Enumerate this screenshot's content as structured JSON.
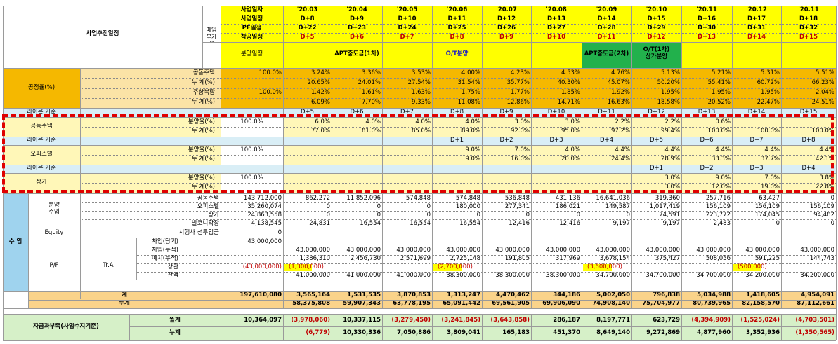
{
  "header": {
    "business_schedule": "사업추진일정",
    "purchase_vat": "매입\n부가세",
    "row_labels": [
      "사업일자",
      "사업일정",
      "PF일정",
      "착공일정"
    ],
    "sales_schedule": "분양일정",
    "columns": [
      {
        "date": "'20.03",
        "biz": "D+8",
        "pf": "D+22",
        "start": "D+5"
      },
      {
        "date": "'20.04",
        "biz": "D+9",
        "pf": "D+23",
        "start": "D+6"
      },
      {
        "date": "'20.05",
        "biz": "D+10",
        "pf": "D+24",
        "start": "D+7"
      },
      {
        "date": "'20.06",
        "biz": "D+11",
        "pf": "D+25",
        "start": "D+8"
      },
      {
        "date": "'20.07",
        "biz": "D+12",
        "pf": "D+26",
        "start": "D+9"
      },
      {
        "date": "'20.08",
        "biz": "D+13",
        "pf": "D+27",
        "start": "D+10"
      },
      {
        "date": "'20.09",
        "biz": "D+14",
        "pf": "D+28",
        "start": "D+11"
      },
      {
        "date": "'20.10",
        "biz": "D+15",
        "pf": "D+29",
        "start": "D+12"
      },
      {
        "date": "'20.11",
        "biz": "D+16",
        "pf": "D+30",
        "start": "D+13"
      },
      {
        "date": "'20.12",
        "biz": "D+17",
        "pf": "D+31",
        "start": "D+14"
      },
      {
        "date": "'20.11",
        "biz": "D+18",
        "pf": "D+32",
        "start": "D+15"
      }
    ],
    "schedule_events": [
      "",
      "APT중도금(1차)",
      "",
      "O/T분양",
      "",
      "",
      "APT중도금(2차)",
      "O/T(1차)\n상가분양",
      "",
      "",
      ""
    ]
  },
  "progress": {
    "label": "공정율(%)",
    "rows": [
      {
        "label": "공동주택",
        "total": "100.0%",
        "values": [
          "3.24%",
          "3.36%",
          "3.53%",
          "4.00%",
          "4.23%",
          "4.53%",
          "4.76%",
          "5.13%",
          "5.21%",
          "5.31%",
          "5.51%"
        ]
      },
      {
        "label": "누  계(%)",
        "total": "",
        "values": [
          "20.65%",
          "24.01%",
          "27.54%",
          "31.54%",
          "35.77%",
          "40.30%",
          "45.07%",
          "50.20%",
          "55.41%",
          "60.72%",
          "66.23%"
        ]
      },
      {
        "label": "주상복합",
        "total": "100.0%",
        "values": [
          "1.42%",
          "1.61%",
          "1.63%",
          "1.75%",
          "1.77%",
          "1.85%",
          "1.92%",
          "1.95%",
          "1.95%",
          "1.95%",
          "2.04%"
        ]
      },
      {
        "label": "누  계(%)",
        "total": "",
        "values": [
          "6.09%",
          "7.70%",
          "9.33%",
          "11.08%",
          "12.86%",
          "14.71%",
          "16.63%",
          "18.58%",
          "20.52%",
          "22.47%",
          "24.51%"
        ]
      }
    ]
  },
  "sales": [
    {
      "base_label": "라이온 기준",
      "base_values": [
        "D+5",
        "D+6",
        "D+7",
        "D+8",
        "D+9",
        "D+10",
        "D+11",
        "D+12",
        "D+13",
        "D+14",
        "D+15"
      ],
      "category": "공동주택",
      "rate_label": "분양율(%)",
      "cum_label": "누  계(%)",
      "total": "100.0%",
      "rate": [
        "6.0%",
        "4.0%",
        "4.0%",
        "4.0%",
        "3.0%",
        "3.0%",
        "2.2%",
        "2.2%",
        "0.6%",
        "",
        ""
      ],
      "cum": [
        "77.0%",
        "81.0%",
        "85.0%",
        "89.0%",
        "92.0%",
        "95.0%",
        "97.2%",
        "99.4%",
        "100.0%",
        "100.0%",
        "100.0%"
      ]
    },
    {
      "base_label": "라이온 기준",
      "base_values": [
        "",
        "",
        "",
        "D+1",
        "D+2",
        "D+3",
        "D+4",
        "D+5",
        "D+6",
        "D+7",
        "D+8"
      ],
      "category": "오피스텔",
      "rate_label": "분양율(%)",
      "cum_label": "누  계(%)",
      "total": "100.0%",
      "rate": [
        "",
        "",
        "",
        "9.0%",
        "7.0%",
        "4.0%",
        "4.4%",
        "4.4%",
        "4.4%",
        "4.4%",
        "4.4%"
      ],
      "cum": [
        "",
        "",
        "",
        "9.0%",
        "16.0%",
        "20.0%",
        "24.4%",
        "28.9%",
        "33.3%",
        "37.7%",
        "42.1%"
      ]
    },
    {
      "base_label": "라이온 기준",
      "base_values": [
        "",
        "",
        "",
        "",
        "",
        "",
        "",
        "D+1",
        "D+2",
        "D+3",
        "D+4"
      ],
      "category": "상가",
      "rate_label": "분양율(%)",
      "cum_label": "누  계(%)",
      "total": "100.0%",
      "rate": [
        "",
        "",
        "",
        "",
        "",
        "",
        "",
        "3.0%",
        "9.0%",
        "7.0%",
        "3.8%"
      ],
      "cum": [
        "",
        "",
        "",
        "",
        "",
        "",
        "",
        "3.0%",
        "12.0%",
        "19.0%",
        "22.8%"
      ]
    }
  ],
  "income": {
    "label": "수 입",
    "sales_label": "분양\n수입",
    "rows": [
      {
        "label": "공동주택",
        "total": "143,712,000",
        "values": [
          "862,272",
          "11,852,096",
          "574,848",
          "574,848",
          "536,848",
          "431,136",
          "16,641,036",
          "319,360",
          "257,716",
          "63,427",
          "0"
        ]
      },
      {
        "label": "오피스텔",
        "total": "35,260,074",
        "values": [
          "0",
          "0",
          "0",
          "180,000",
          "277,341",
          "186,021",
          "149,587",
          "1,017,419",
          "156,109",
          "156,109",
          "156,109"
        ]
      },
      {
        "label": "상가",
        "total": "24,863,558",
        "values": [
          "0",
          "0",
          "0",
          "0",
          "0",
          "0",
          "0",
          "74,591",
          "223,772",
          "174,045",
          "94,482"
        ]
      },
      {
        "label": "발코니확장",
        "total": "4,138,545",
        "values": [
          "24,831",
          "16,554",
          "16,554",
          "16,554",
          "12,416",
          "12,416",
          "9,197",
          "9,197",
          "2,483",
          "0",
          "0"
        ]
      }
    ],
    "equity_label": "Equity",
    "equity_row": {
      "label": "시행사 선투입금",
      "total": "0",
      "values": [
        "",
        "",
        "",
        "",
        "",
        "",
        "",
        "",
        "",
        "",
        ""
      ]
    },
    "pf_label": "P/F",
    "tra_label": "Tr.A",
    "pf_rows": [
      {
        "label": "차입(당기)",
        "total": "43,000,000",
        "values": [
          "",
          "",
          "",
          "",
          "",
          "",
          "",
          "",
          "",
          "",
          ""
        ]
      },
      {
        "label": "차입(누적)",
        "total": "",
        "values": [
          "43,000,000",
          "43,000,000",
          "43,000,000",
          "43,000,000",
          "43,000,000",
          "43,000,000",
          "43,000,000",
          "43,000,000",
          "43,000,000",
          "43,000,000",
          "43,000,000"
        ]
      },
      {
        "label": "예치(누적)",
        "total": "",
        "values": [
          "1,386,310",
          "2,456,730",
          "2,571,699",
          "2,725,148",
          "191,805",
          "317,969",
          "3,678,154",
          "375,427",
          "508,056",
          "591,225",
          "144,743"
        ]
      },
      {
        "label": "상환",
        "total": "(43,000,000)",
        "values": [
          "(1,300,000)",
          "",
          "",
          "(2,700,000)",
          "",
          "",
          "(3,600,000)",
          "",
          "",
          "(500,000)",
          ""
        ]
      },
      {
        "label": "잔액",
        "total": "",
        "values": [
          "41,000,000",
          "41,000,000",
          "41,000,000",
          "38,300,000",
          "38,300,000",
          "38,300,000",
          "34,700,000",
          "34,700,000",
          "34,700,000",
          "34,200,000",
          "34,200,000"
        ]
      }
    ],
    "subtotal": {
      "label": "계",
      "total": "197,610,080",
      "values": [
        "3,565,164",
        "1,531,535",
        "3,870,853",
        "1,313,247",
        "4,470,462",
        "344,186",
        "5,002,050",
        "796,838",
        "5,034,988",
        "1,418,605",
        "4,954,091"
      ]
    },
    "cumulative": {
      "label": "누계",
      "values": [
        "58,375,808",
        "59,907,343",
        "63,778,195",
        "65,091,442",
        "69,561,905",
        "69,906,090",
        "74,908,140",
        "75,704,977",
        "80,739,965",
        "82,158,570",
        "87,112,661"
      ]
    }
  },
  "funding": {
    "label": "자금과부족(사업수지기준)",
    "monthly": {
      "label": "월계",
      "total": "10,364,097",
      "values": [
        "(3,978,060)",
        "10,337,115",
        "(3,279,450)",
        "(3,241,845)",
        "(3,643,858)",
        "286,187",
        "8,197,771",
        "623,729",
        "(4,394,909)",
        "(1,525,024)",
        "(4,703,501)"
      ]
    },
    "cumulative": {
      "label": "누계",
      "total": "",
      "values": [
        "(6,779)",
        "10,330,336",
        "7,050,886",
        "3,809,041",
        "165,183",
        "451,370",
        "8,649,140",
        "9,272,869",
        "4,877,960",
        "3,352,936",
        "(1,350,565)"
      ]
    }
  },
  "colors": {
    "header_yellow": "#ffff00",
    "progress_orange": "#f5b800",
    "progress_light": "#fbe3a6",
    "sales_yellow": "#fff7b8",
    "base_blue": "#d9eef6",
    "income_blue": "#9fd3ee",
    "subtotal_orange": "#fad38a",
    "funding_green": "#d6f0c8",
    "green_event": "#22b14c",
    "dash_red": "#e00000"
  }
}
